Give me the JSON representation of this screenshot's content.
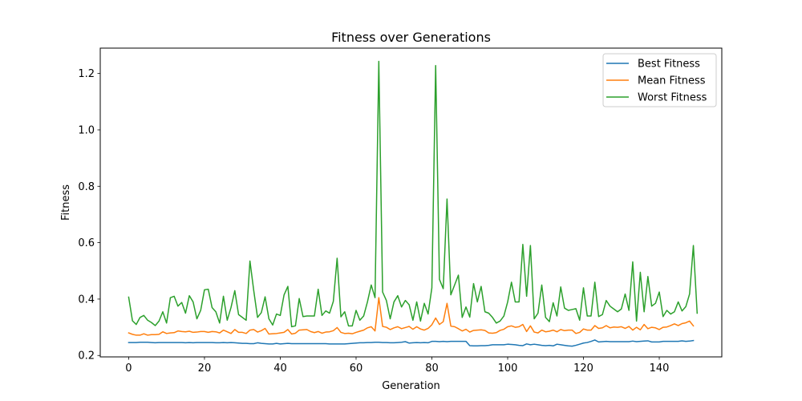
{
  "chart_data": {
    "type": "line",
    "title": "Fitness over Generations",
    "xlabel": "Generation",
    "ylabel": "Fitness",
    "xlim": [
      -7.5,
      156.5
    ],
    "ylim": [
      0.195,
      1.29
    ],
    "xticks": [
      0,
      20,
      40,
      60,
      80,
      100,
      120,
      140
    ],
    "yticks": [
      0.2,
      0.4,
      0.6,
      0.8,
      1.0,
      1.2
    ],
    "ytick_labels": [
      "0.2",
      "0.4",
      "0.6",
      "0.8",
      "1.0",
      "1.2"
    ],
    "grid": false,
    "legend_position": "top-right",
    "series": [
      {
        "name": "Best Fitness",
        "color": "#1f77b4",
        "values": [
          0.246,
          0.246,
          0.246,
          0.247,
          0.247,
          0.247,
          0.246,
          0.245,
          0.246,
          0.246,
          0.246,
          0.246,
          0.246,
          0.246,
          0.246,
          0.245,
          0.246,
          0.245,
          0.246,
          0.246,
          0.246,
          0.246,
          0.246,
          0.245,
          0.245,
          0.246,
          0.245,
          0.246,
          0.245,
          0.244,
          0.243,
          0.243,
          0.242,
          0.242,
          0.245,
          0.243,
          0.242,
          0.241,
          0.241,
          0.243,
          0.241,
          0.242,
          0.243,
          0.242,
          0.242,
          0.242,
          0.242,
          0.242,
          0.242,
          0.242,
          0.242,
          0.242,
          0.242,
          0.241,
          0.241,
          0.241,
          0.241,
          0.241,
          0.242,
          0.243,
          0.244,
          0.245,
          0.245,
          0.246,
          0.246,
          0.247,
          0.247,
          0.246,
          0.246,
          0.245,
          0.245,
          0.246,
          0.247,
          0.249,
          0.244,
          0.245,
          0.246,
          0.245,
          0.246,
          0.245,
          0.25,
          0.25,
          0.249,
          0.25,
          0.249,
          0.25,
          0.25,
          0.25,
          0.25,
          0.25,
          0.235,
          0.234,
          0.234,
          0.235,
          0.235,
          0.236,
          0.238,
          0.238,
          0.238,
          0.238,
          0.24,
          0.239,
          0.238,
          0.236,
          0.235,
          0.241,
          0.238,
          0.24,
          0.238,
          0.236,
          0.235,
          0.236,
          0.234,
          0.24,
          0.238,
          0.236,
          0.234,
          0.233,
          0.236,
          0.24,
          0.244,
          0.246,
          0.25,
          0.255,
          0.248,
          0.249,
          0.25,
          0.249,
          0.249,
          0.249,
          0.249,
          0.249,
          0.249,
          0.251,
          0.249,
          0.25,
          0.251,
          0.252,
          0.248,
          0.248,
          0.248,
          0.25,
          0.25,
          0.25,
          0.25,
          0.25,
          0.252,
          0.25,
          0.251,
          0.253
        ]
      },
      {
        "name": "Mean Fitness",
        "color": "#ff7f0e",
        "values": [
          0.28,
          0.275,
          0.272,
          0.272,
          0.277,
          0.272,
          0.274,
          0.274,
          0.275,
          0.284,
          0.278,
          0.28,
          0.281,
          0.287,
          0.285,
          0.284,
          0.286,
          0.282,
          0.283,
          0.285,
          0.285,
          0.282,
          0.285,
          0.284,
          0.28,
          0.29,
          0.284,
          0.278,
          0.292,
          0.282,
          0.282,
          0.278,
          0.29,
          0.292,
          0.283,
          0.288,
          0.296,
          0.276,
          0.277,
          0.278,
          0.28,
          0.282,
          0.292,
          0.276,
          0.279,
          0.29,
          0.291,
          0.292,
          0.285,
          0.281,
          0.285,
          0.279,
          0.283,
          0.284,
          0.288,
          0.299,
          0.282,
          0.278,
          0.279,
          0.277,
          0.282,
          0.286,
          0.29,
          0.298,
          0.302,
          0.287,
          0.405,
          0.303,
          0.3,
          0.292,
          0.298,
          0.302,
          0.295,
          0.299,
          0.303,
          0.293,
          0.302,
          0.294,
          0.29,
          0.296,
          0.309,
          0.333,
          0.31,
          0.32,
          0.385,
          0.304,
          0.302,
          0.295,
          0.287,
          0.293,
          0.283,
          0.289,
          0.29,
          0.291,
          0.289,
          0.28,
          0.279,
          0.281,
          0.289,
          0.293,
          0.302,
          0.305,
          0.3,
          0.302,
          0.31,
          0.285,
          0.305,
          0.283,
          0.28,
          0.29,
          0.284,
          0.286,
          0.29,
          0.284,
          0.292,
          0.288,
          0.29,
          0.29,
          0.278,
          0.282,
          0.294,
          0.29,
          0.29,
          0.306,
          0.296,
          0.298,
          0.306,
          0.298,
          0.301,
          0.3,
          0.302,
          0.296,
          0.303,
          0.29,
          0.3,
          0.291,
          0.31,
          0.295,
          0.3,
          0.298,
          0.292,
          0.3,
          0.301,
          0.306,
          0.312,
          0.306,
          0.313,
          0.316,
          0.322,
          0.305
        ]
      },
      {
        "name": "Worst Fitness",
        "color": "#2ca02c",
        "values": [
          0.407,
          0.323,
          0.31,
          0.335,
          0.342,
          0.325,
          0.317,
          0.306,
          0.322,
          0.355,
          0.315,
          0.405,
          0.41,
          0.375,
          0.388,
          0.35,
          0.412,
          0.39,
          0.33,
          0.36,
          0.433,
          0.435,
          0.37,
          0.355,
          0.315,
          0.41,
          0.325,
          0.37,
          0.43,
          0.345,
          0.335,
          0.325,
          0.535,
          0.43,
          0.335,
          0.352,
          0.408,
          0.33,
          0.308,
          0.347,
          0.342,
          0.415,
          0.445,
          0.302,
          0.305,
          0.402,
          0.338,
          0.34,
          0.34,
          0.34,
          0.435,
          0.342,
          0.358,
          0.35,
          0.392,
          0.545,
          0.337,
          0.355,
          0.305,
          0.305,
          0.36,
          0.325,
          0.34,
          0.39,
          0.45,
          0.405,
          1.243,
          0.425,
          0.395,
          0.33,
          0.39,
          0.412,
          0.372,
          0.395,
          0.38,
          0.325,
          0.39,
          0.322,
          0.385,
          0.347,
          0.44,
          1.228,
          0.47,
          0.437,
          0.755,
          0.415,
          0.45,
          0.485,
          0.335,
          0.372,
          0.336,
          0.455,
          0.39,
          0.445,
          0.355,
          0.35,
          0.335,
          0.315,
          0.322,
          0.34,
          0.39,
          0.46,
          0.39,
          0.39,
          0.594,
          0.41,
          0.59,
          0.33,
          0.35,
          0.45,
          0.335,
          0.32,
          0.387,
          0.34,
          0.443,
          0.368,
          0.36,
          0.363,
          0.366,
          0.325,
          0.44,
          0.34,
          0.34,
          0.46,
          0.338,
          0.345,
          0.395,
          0.375,
          0.365,
          0.355,
          0.365,
          0.418,
          0.36,
          0.532,
          0.322,
          0.495,
          0.355,
          0.48,
          0.375,
          0.385,
          0.425,
          0.338,
          0.36,
          0.347,
          0.355,
          0.39,
          0.358,
          0.373,
          0.418,
          0.59,
          0.35
        ]
      }
    ]
  }
}
